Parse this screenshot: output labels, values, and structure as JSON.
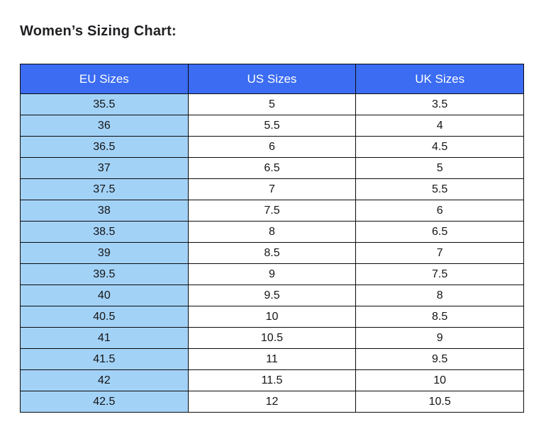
{
  "page": {
    "title": "Women’s Sizing Chart:"
  },
  "colors": {
    "header_bg": "#3B6CF2",
    "header_text": "#FFFFFF",
    "eu_cell_bg": "#A3D2F7",
    "border": "#0A0A0A",
    "title_text": "#202124",
    "cell_text": "#141414"
  },
  "chart_data": {
    "type": "table",
    "title": "Women’s Sizing Chart:",
    "columns": [
      "EU Sizes",
      "US Sizes",
      "UK Sizes"
    ],
    "rows": [
      [
        "35.5",
        "5",
        "3.5"
      ],
      [
        "36",
        "5.5",
        "4"
      ],
      [
        "36.5",
        "6",
        "4.5"
      ],
      [
        "37",
        "6.5",
        "5"
      ],
      [
        "37.5",
        "7",
        "5.5"
      ],
      [
        "38",
        "7.5",
        "6"
      ],
      [
        "38.5",
        "8",
        "6.5"
      ],
      [
        "39",
        "8.5",
        "7"
      ],
      [
        "39.5",
        "9",
        "7.5"
      ],
      [
        "40",
        "9.5",
        "8"
      ],
      [
        "40.5",
        "10",
        "8.5"
      ],
      [
        "41",
        "10.5",
        "9"
      ],
      [
        "41.5",
        "11",
        "9.5"
      ],
      [
        "42",
        "11.5",
        "10"
      ],
      [
        "42.5",
        "12",
        "10.5"
      ]
    ]
  }
}
